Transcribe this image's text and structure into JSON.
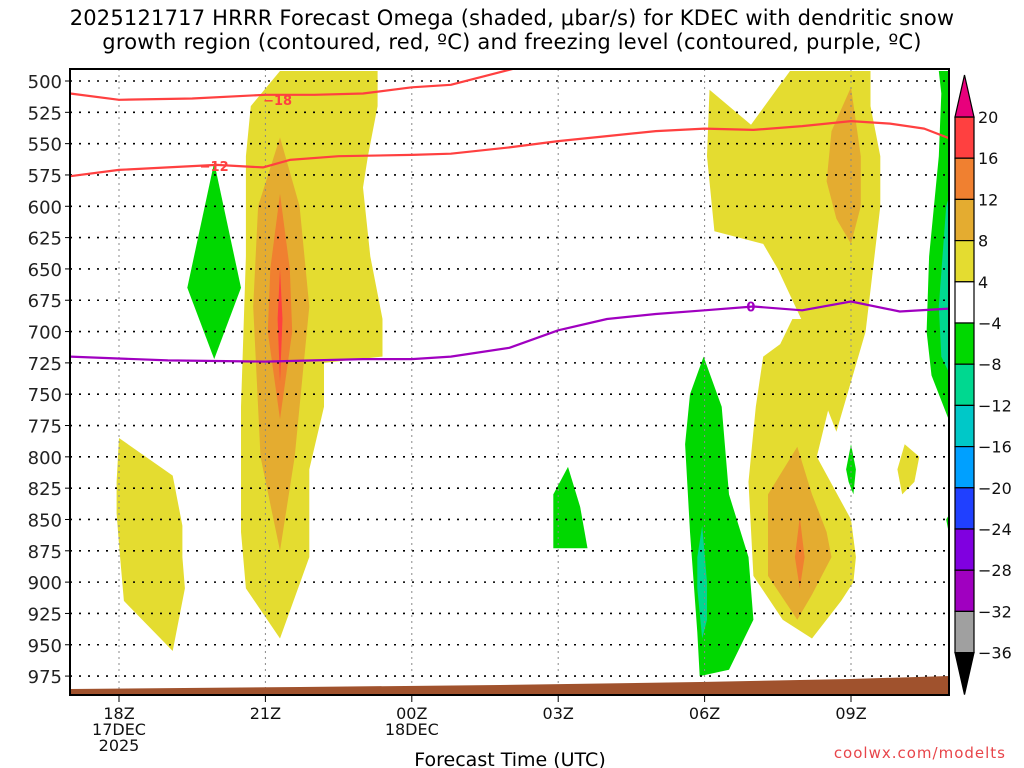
{
  "chart_data": {
    "type": "heatmap",
    "title": "2025121717 HRRR Forecast Omega (shaded, μbar/s) for KDEC with dendritic snow growth region (contoured, red, ºC) and freezing level (contoured, purple, ºC)",
    "title_lines": [
      "2025121717 HRRR Forecast Omega (shaded, μbar/s) for KDEC with dendritic snow",
      "growth region (contoured, red, ºC) and freezing level (contoured, purple, ºC)"
    ],
    "xlabel": "Forecast Time (UTC)",
    "ylabel": "",
    "x_units": "hours since 18Z 17DEC2025",
    "xlim": [
      -1,
      10.9
    ],
    "ylim": [
      975,
      500
    ],
    "y_ticks": [
      500,
      525,
      550,
      575,
      600,
      625,
      650,
      675,
      700,
      725,
      750,
      775,
      800,
      825,
      850,
      875,
      900,
      925,
      950,
      975
    ],
    "x_ticks": [
      {
        "x": 0,
        "lines": [
          "18Z",
          "17DEC",
          "2025"
        ]
      },
      {
        "x": 3,
        "lines": [
          "21Z"
        ]
      },
      {
        "x": 6,
        "lines": [
          "00Z",
          "18DEC"
        ]
      },
      {
        "x": 9,
        "lines": [
          "03Z"
        ]
      },
      {
        "x": 12,
        "lines": [
          "06Z"
        ]
      },
      {
        "x": 15,
        "lines": [
          "09Z"
        ]
      }
    ],
    "grid": true,
    "colorbar": {
      "placement": "right",
      "levels": [
        20,
        16,
        12,
        8,
        4,
        -4,
        -8,
        -12,
        -16,
        -20,
        -24,
        -28,
        -32,
        -36
      ],
      "colors": [
        "#ff4040",
        "#f08030",
        "#e4ac30",
        "#e4dc30",
        "#ffffff",
        "#00d800",
        "#00d890",
        "#00c8c8",
        "#00a0ff",
        "#2040ff",
        "#8000e0",
        "#a000c0",
        "#a0a0a0"
      ],
      "over_color": "#e8007c",
      "under_color": "#000000"
    },
    "shaded_regions": [
      {
        "name": "yellow-left-low",
        "level": "4 to 8",
        "color": "#e4dc30",
        "points": [
          [
            0,
            785
          ],
          [
            1.1,
            815
          ],
          [
            1.3,
            855
          ],
          [
            1.3,
            880
          ],
          [
            1.35,
            905
          ],
          [
            1.1,
            955
          ],
          [
            0.1,
            915
          ],
          [
            0,
            870
          ],
          [
            -0.05,
            845
          ],
          [
            -0.05,
            820
          ]
        ]
      },
      {
        "name": "green-left-mid",
        "level": "-4 to -8",
        "color": "#00d800",
        "points": [
          [
            1.95,
            565
          ],
          [
            2.5,
            665
          ],
          [
            1.95,
            722
          ],
          [
            1.4,
            665
          ]
        ]
      },
      {
        "name": "yellow-main-column",
        "level": "4 to 8",
        "color": "#e4dc30",
        "points": [
          [
            3.3,
            492
          ],
          [
            5.3,
            492
          ],
          [
            5.3,
            520
          ],
          [
            5.1,
            560
          ],
          [
            5,
            585
          ],
          [
            5.15,
            640
          ],
          [
            5.4,
            690
          ],
          [
            5.4,
            720
          ],
          [
            4.2,
            725
          ],
          [
            4.2,
            760
          ],
          [
            3.9,
            810
          ],
          [
            3.9,
            880
          ],
          [
            3.3,
            945
          ],
          [
            2.6,
            905
          ],
          [
            2.5,
            860
          ],
          [
            2.5,
            760
          ],
          [
            2.6,
            640
          ],
          [
            2.6,
            560
          ],
          [
            2.7,
            520
          ]
        ]
      },
      {
        "name": "orange-light-main",
        "level": "8 to 12",
        "color": "#e4ac30",
        "points": [
          [
            3.3,
            545
          ],
          [
            3.7,
            600
          ],
          [
            3.9,
            680
          ],
          [
            3.6,
            800
          ],
          [
            3.3,
            875
          ],
          [
            2.9,
            800
          ],
          [
            2.75,
            680
          ],
          [
            2.85,
            600
          ]
        ]
      },
      {
        "name": "orange-main",
        "level": "12 to 16",
        "color": "#f08030",
        "points": [
          [
            3.3,
            590
          ],
          [
            3.5,
            650
          ],
          [
            3.55,
            700
          ],
          [
            3.3,
            770
          ],
          [
            3.05,
            700
          ],
          [
            3.1,
            650
          ]
        ]
      },
      {
        "name": "red-main",
        "level": "16 to 20",
        "color": "#ff4040",
        "points": [
          [
            3.3,
            650
          ],
          [
            3.35,
            690
          ],
          [
            3.3,
            740
          ],
          [
            3.25,
            690
          ]
        ]
      },
      {
        "name": "green-mid-small",
        "level": "-4 to -8",
        "color": "#00d800",
        "points": [
          [
            9.2,
            808
          ],
          [
            9.45,
            840
          ],
          [
            9.6,
            873
          ],
          [
            8.9,
            873
          ],
          [
            8.9,
            830
          ]
        ]
      },
      {
        "name": "yellow-right-upper",
        "level": "4 to 8",
        "color": "#e4dc30",
        "points": [
          [
            12.1,
            507
          ],
          [
            12.95,
            535
          ],
          [
            13.75,
            492
          ],
          [
            15.4,
            492
          ],
          [
            15.4,
            520
          ],
          [
            15.6,
            560
          ],
          [
            15.6,
            600
          ],
          [
            15.45,
            650
          ],
          [
            15.3,
            700
          ],
          [
            15,
            740
          ],
          [
            14.7,
            780
          ],
          [
            14.5,
            760
          ],
          [
            14.1,
            700
          ],
          [
            13.5,
            650
          ],
          [
            13.2,
            630
          ],
          [
            12.2,
            620
          ],
          [
            12.05,
            560
          ]
        ]
      },
      {
        "name": "orange-light-right-upper",
        "level": "8 to 12",
        "color": "#e4ac30",
        "points": [
          [
            15,
            505
          ],
          [
            15.2,
            560
          ],
          [
            15.2,
            600
          ],
          [
            15,
            630
          ],
          [
            14.7,
            610
          ],
          [
            14.5,
            580
          ],
          [
            14.6,
            540
          ]
        ]
      },
      {
        "name": "yellow-right-lower",
        "level": "4 to 8",
        "color": "#e4dc30",
        "points": [
          [
            13.8,
            690
          ],
          [
            14.6,
            690
          ],
          [
            14.55,
            760
          ],
          [
            14.3,
            800
          ],
          [
            15,
            850
          ],
          [
            15.1,
            880
          ],
          [
            15.05,
            900
          ],
          [
            14.8,
            915
          ],
          [
            14.2,
            945
          ],
          [
            13.6,
            930
          ],
          [
            13.0,
            895
          ],
          [
            12.9,
            820
          ],
          [
            13.05,
            760
          ],
          [
            13.2,
            720
          ],
          [
            13.55,
            710
          ]
        ]
      },
      {
        "name": "orange-light-right-lower",
        "level": "8 to 12",
        "color": "#e4ac30",
        "points": [
          [
            13.9,
            792
          ],
          [
            14.2,
            830
          ],
          [
            14.5,
            860
          ],
          [
            14.6,
            880
          ],
          [
            14.2,
            910
          ],
          [
            13.9,
            930
          ],
          [
            13.3,
            895
          ],
          [
            13.3,
            830
          ]
        ]
      },
      {
        "name": "orange-right-lower",
        "level": "12 to 16",
        "color": "#f08030",
        "points": [
          [
            13.95,
            848
          ],
          [
            14.05,
            880
          ],
          [
            13.95,
            905
          ],
          [
            13.85,
            880
          ]
        ]
      },
      {
        "name": "green-right-lower",
        "level": "-4 to -8",
        "color": "#00d800",
        "points": [
          [
            11.98,
            720
          ],
          [
            12.35,
            760
          ],
          [
            12.5,
            830
          ],
          [
            12.9,
            880
          ],
          [
            13.0,
            930
          ],
          [
            12.5,
            970
          ],
          [
            11.9,
            975
          ],
          [
            11.85,
            940
          ],
          [
            11.7,
            860
          ],
          [
            11.6,
            790
          ],
          [
            11.7,
            750
          ]
        ]
      },
      {
        "name": "teal-right-lower",
        "level": "-8 to -12",
        "color": "#00d890",
        "points": [
          [
            11.95,
            855
          ],
          [
            12.05,
            900
          ],
          [
            12.05,
            930
          ],
          [
            11.95,
            945
          ],
          [
            11.85,
            905
          ],
          [
            11.85,
            880
          ]
        ]
      },
      {
        "name": "green-small-right",
        "level": "-4 to -8",
        "color": "#00d800",
        "points": [
          [
            15,
            790
          ],
          [
            15.1,
            810
          ],
          [
            15.05,
            830
          ],
          [
            14.95,
            820
          ],
          [
            14.9,
            810
          ]
        ]
      },
      {
        "name": "yellow-small-right",
        "level": "4 to 8",
        "color": "#e4dc30",
        "points": [
          [
            16.1,
            790
          ],
          [
            16.4,
            800
          ],
          [
            16.3,
            820
          ],
          [
            16.05,
            830
          ],
          [
            15.95,
            810
          ]
        ]
      },
      {
        "name": "green-far-right-lower",
        "level": "-4 to -8",
        "color": "#00d800",
        "points": [
          [
            17.3,
            828
          ],
          [
            17.3,
            950
          ],
          [
            17.05,
            920
          ],
          [
            17,
            860
          ],
          [
            16.95,
            850
          ],
          [
            17.1,
            840
          ]
        ]
      },
      {
        "name": "green-far-right",
        "level": "-4 to -8",
        "color": "#00d800",
        "points": [
          [
            16.8,
            492
          ],
          [
            17.2,
            492
          ],
          [
            17.3,
            525
          ],
          [
            17.3,
            760
          ],
          [
            17.0,
            770
          ],
          [
            16.65,
            735
          ],
          [
            16.55,
            700
          ],
          [
            16.6,
            640
          ],
          [
            16.8,
            560
          ],
          [
            16.85,
            510
          ]
        ]
      },
      {
        "name": "teal-far-right",
        "level": "-8 to -12",
        "color": "#00d890",
        "points": [
          [
            17.3,
            555
          ],
          [
            17.3,
            745
          ],
          [
            17.1,
            740
          ],
          [
            16.85,
            720
          ],
          [
            16.8,
            680
          ],
          [
            16.95,
            600
          ]
        ]
      },
      {
        "name": "cyan-far-right",
        "level": "-12 to -16",
        "color": "#00c8c8",
        "points": [
          [
            17.3,
            580
          ],
          [
            17.3,
            725
          ],
          [
            17.2,
            715
          ],
          [
            17.0,
            690
          ],
          [
            17.0,
            640
          ],
          [
            17.1,
            600
          ]
        ]
      },
      {
        "name": "blue-light-far-right",
        "level": "-16 to -20",
        "color": "#00a0ff",
        "points": [
          [
            17.3,
            600
          ],
          [
            17.3,
            705
          ],
          [
            17.2,
            695
          ],
          [
            17.12,
            660
          ],
          [
            17.15,
            625
          ]
        ]
      },
      {
        "name": "blue-far-right",
        "level": "-20 to -24",
        "color": "#2040ff",
        "points": [
          [
            17.3,
            615
          ],
          [
            17.3,
            690
          ],
          [
            17.22,
            675
          ],
          [
            17.2,
            640
          ]
        ]
      },
      {
        "name": "purple-far-right",
        "level": "-24 to -28",
        "color": "#8000e0",
        "points": [
          [
            17.3,
            640
          ],
          [
            17.3,
            670
          ],
          [
            17.27,
            660
          ]
        ]
      }
    ],
    "contours": [
      {
        "name": "dgz-minus-18",
        "label": "-18",
        "color": "#ff4040",
        "label_at": [
          3.25,
          515
        ],
        "points": [
          [
            -1,
            510
          ],
          [
            0,
            515
          ],
          [
            1.5,
            514
          ],
          [
            3,
            511
          ],
          [
            4,
            511
          ],
          [
            5,
            510
          ],
          [
            6,
            505
          ],
          [
            6.8,
            503
          ],
          [
            8.1,
            490
          ]
        ]
      },
      {
        "name": "dgz-minus-12",
        "label": "-12",
        "color": "#ff4040",
        "label_at": [
          1.95,
          568
        ],
        "points": [
          [
            -1,
            576
          ],
          [
            0,
            571
          ],
          [
            1,
            569
          ],
          [
            2,
            567
          ],
          [
            2.95,
            569
          ],
          [
            3.5,
            563
          ],
          [
            4.5,
            560
          ],
          [
            6,
            559
          ],
          [
            6.8,
            558
          ],
          [
            8,
            553
          ],
          [
            9,
            548
          ],
          [
            10,
            544
          ],
          [
            11,
            540
          ],
          [
            12,
            538
          ],
          [
            13,
            539
          ],
          [
            14,
            536
          ],
          [
            15,
            532
          ],
          [
            15.8,
            534
          ],
          [
            16.5,
            538
          ],
          [
            17.3,
            550
          ]
        ]
      },
      {
        "name": "freezing-level-0",
        "label": "0",
        "color": "#a000c0",
        "label_at": [
          12.95,
          680
        ],
        "points": [
          [
            -1,
            720
          ],
          [
            1,
            723
          ],
          [
            3,
            724
          ],
          [
            5,
            722
          ],
          [
            6,
            722
          ],
          [
            6.8,
            720
          ],
          [
            8,
            713
          ],
          [
            9,
            699
          ],
          [
            10,
            690
          ],
          [
            11,
            686
          ],
          [
            12,
            683
          ],
          [
            13,
            680
          ],
          [
            14,
            683
          ],
          [
            15,
            676
          ],
          [
            16,
            684
          ],
          [
            17.3,
            681
          ]
        ]
      }
    ],
    "ground": {
      "color": "#a0522d",
      "start_pressure": 985,
      "end_pressure": 975
    }
  },
  "credit": "coolwx.com/modelts"
}
